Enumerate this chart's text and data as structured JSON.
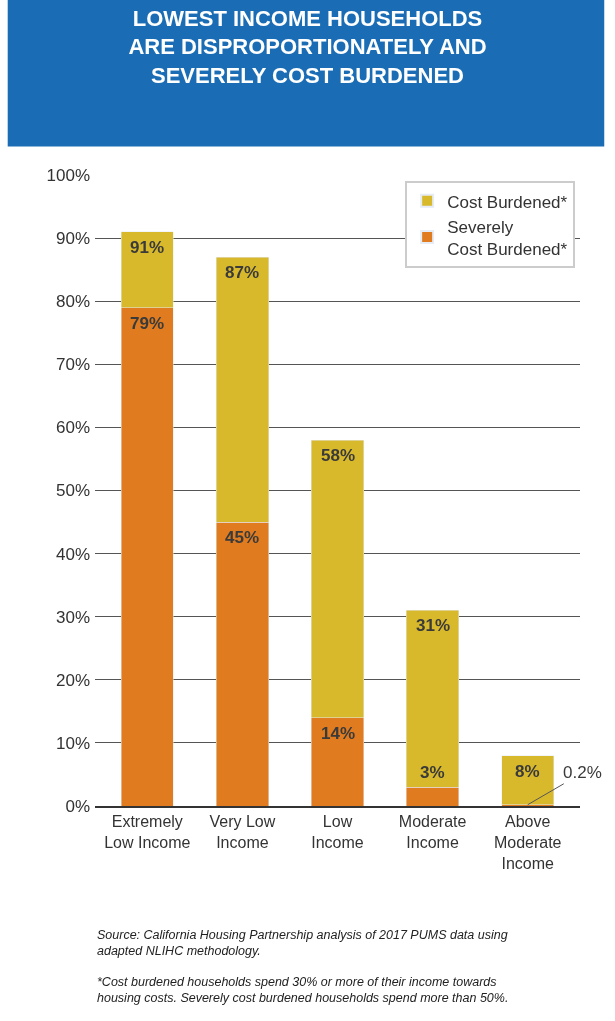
{
  "chart_data": {
    "type": "bar",
    "title": "LOWEST INCOME HOUSEHOLDS\nARE DISPROPORTIONATELY AND\nSEVERELY COST BURDENED",
    "categories": [
      "Extremely\nLow Income",
      "Very Low\nIncome",
      "Low\nIncome",
      "Moderate\nIncome",
      "Above\nModerate\nIncome"
    ],
    "series": [
      {
        "name": "Severely\nCost Burdened*",
        "color": "#e07b1f",
        "values": [
          79,
          45,
          14,
          3,
          0.2
        ],
        "value_labels": [
          "79%",
          "45%",
          "14%",
          "3%",
          "0.2%"
        ]
      },
      {
        "name": "Cost Burdened*",
        "color": "#d9b92c",
        "values": [
          12,
          42,
          44,
          28,
          7.8
        ]
      }
    ],
    "totals": [
      "91%",
      "87%",
      "58%",
      "31%",
      "8%"
    ],
    "stacked": true,
    "ylim": [
      0,
      100
    ],
    "yticks": [
      {
        "value": 0,
        "label": "0%"
      },
      {
        "value": 10,
        "label": "10%"
      },
      {
        "value": 20,
        "label": "20%"
      },
      {
        "value": 30,
        "label": "30%"
      },
      {
        "value": 40,
        "label": "40%"
      },
      {
        "value": 50,
        "label": "50%"
      },
      {
        "value": 60,
        "label": "60%"
      },
      {
        "value": 70,
        "label": "70%"
      },
      {
        "value": 80,
        "label": "80%"
      },
      {
        "value": 90,
        "label": "90%"
      },
      {
        "value": 100,
        "label": "100%"
      }
    ],
    "grid": "y",
    "legend": "top right",
    "annotations": [
      "Source: California Housing Partnership analysis of 2017 PUMS data using\nadapted NLIHC methodology.",
      "*Cost burdened households spend 30% or more of their income towards\nhousing costs. Severely cost burdened households spend more than 50%."
    ]
  }
}
